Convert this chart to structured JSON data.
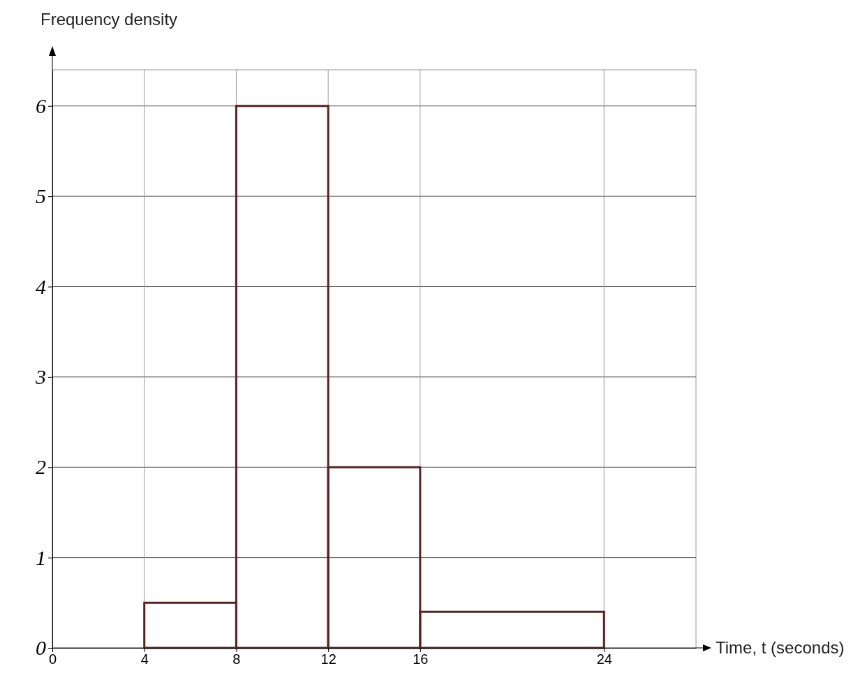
{
  "chart_data": {
    "type": "histogram",
    "ylabel": "Frequency density",
    "xlabel": "Time, t (seconds)",
    "bins": [
      4,
      8,
      12,
      16,
      24
    ],
    "values": [
      0.5,
      6,
      2,
      0.4
    ],
    "color": "#5a2323",
    "xlim": [
      0,
      28
    ],
    "ylim": [
      0,
      6.4
    ],
    "xticks": [
      0,
      4,
      8,
      12,
      16,
      24
    ],
    "yticks": [
      0,
      1,
      2,
      3,
      4,
      5,
      6
    ],
    "grid": true
  }
}
